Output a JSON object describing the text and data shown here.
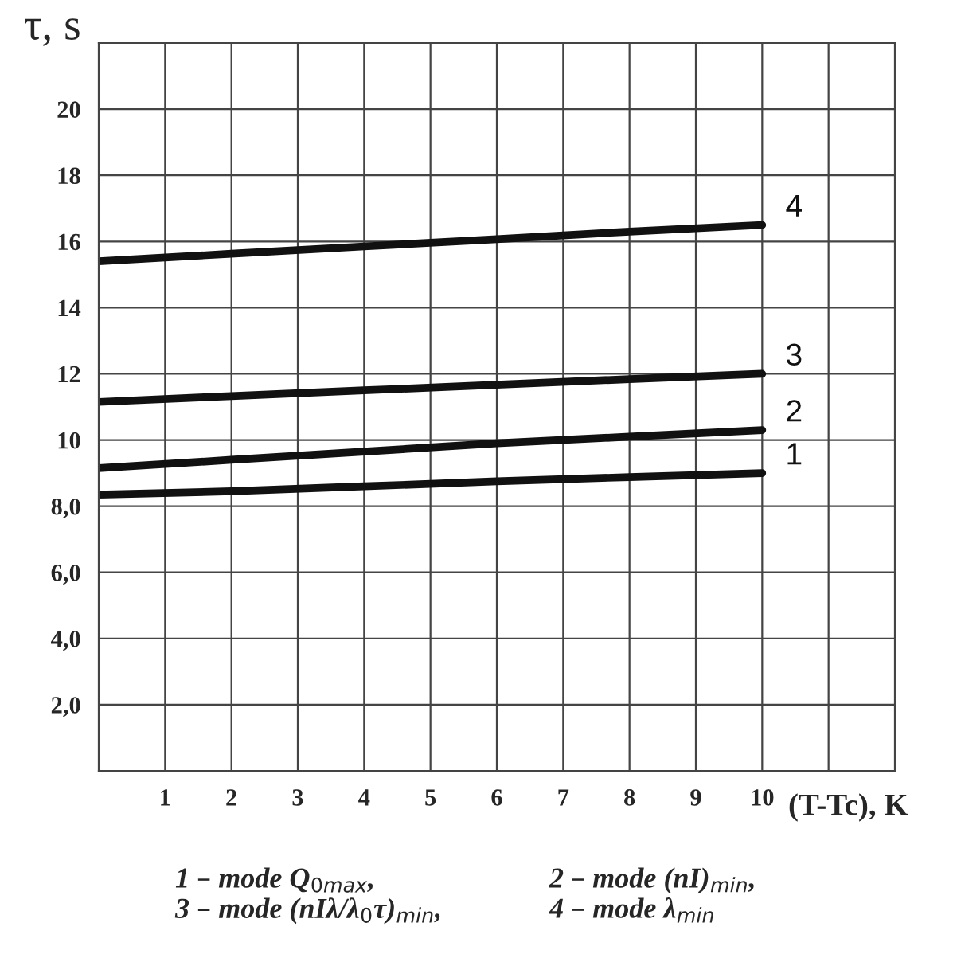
{
  "chart_data": {
    "type": "line",
    "xlabel": "(T-Tc), K",
    "ylabel": "τ, s",
    "xlim": [
      0,
      12
    ],
    "ylim": [
      0,
      22
    ],
    "xticks": [
      1,
      2,
      3,
      4,
      5,
      6,
      7,
      8,
      9,
      10,
      {
        "value": 11,
        "label": null
      }
    ],
    "yticks": [
      {
        "value": 2,
        "label": "2,0"
      },
      {
        "value": 4,
        "label": "4,0"
      },
      {
        "value": 6,
        "label": "6,0"
      },
      {
        "value": 8,
        "label": "8,0"
      },
      10,
      12,
      14,
      16,
      18,
      20
    ],
    "grid": true,
    "legend": false,
    "marker": "none",
    "line_style": "solid",
    "series": [
      {
        "name": "1",
        "color": "#111111",
        "x": [
          0,
          2,
          4,
          6,
          8,
          10
        ],
        "values": [
          8.35,
          8.45,
          8.6,
          8.75,
          8.88,
          9.0
        ]
      },
      {
        "name": "2",
        "color": "#111111",
        "x": [
          0,
          2,
          4,
          6,
          8,
          10
        ],
        "values": [
          9.15,
          9.4,
          9.65,
          9.9,
          10.1,
          10.3
        ]
      },
      {
        "name": "3",
        "color": "#111111",
        "x": [
          0,
          2,
          4,
          6,
          8,
          10
        ],
        "values": [
          11.15,
          11.33,
          11.5,
          11.67,
          11.84,
          12.0
        ]
      },
      {
        "name": "4",
        "color": "#111111",
        "x": [
          0,
          2,
          4,
          6,
          8,
          10
        ],
        "values": [
          15.4,
          15.63,
          15.85,
          16.07,
          16.3,
          16.5
        ]
      }
    ],
    "annotations": [
      "1 – mode Q$_{0max}$,",
      "2 – mode (nI)$_{min}$,",
      "3 – mode (nIλ/λ$_{0}$τ)$_{min}$,",
      "4 – mode λ$_{min}$"
    ]
  }
}
